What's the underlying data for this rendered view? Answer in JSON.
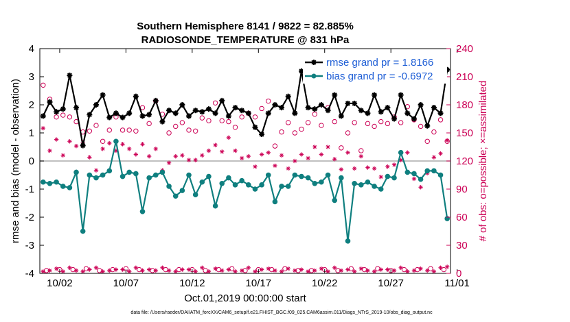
{
  "chart_data": {
    "type": "line",
    "title": "Southern Hemisphere 8141 / 9822 = 82.885%",
    "subtitle": "RADIOSONDE_TEMPERATURE @ 831 hPa",
    "xlabel": "Oct.01,2019 00:00:00 start",
    "ylabel_left": "rmse and bias (model - observation)",
    "ylabel_right": "# of obs: o=possible; ×=assimilated",
    "footer": "data file: /Users/raeder/DAI/ATM_forcXX/CAM6_setup/f.e21.FHIST_BGC.f09_025.CAM6assim.011/Diags_NTrS_2019-10/obs_diag_output.nc",
    "x_range": [
      0.5,
      31.5
    ],
    "ylim_left": [
      -4,
      4
    ],
    "ylim_right": [
      0,
      240
    ],
    "x_ticks": [
      {
        "day": 2,
        "label": "10/02"
      },
      {
        "day": 7,
        "label": "10/07"
      },
      {
        "day": 12,
        "label": "10/12"
      },
      {
        "day": 17,
        "label": "10/17"
      },
      {
        "day": 22,
        "label": "10/22"
      },
      {
        "day": 27,
        "label": "10/27"
      },
      {
        "day": 32,
        "label": "11/01"
      }
    ],
    "y_ticks_left": [
      "-4",
      "-3",
      "-2",
      "-1",
      "0",
      "1",
      "2",
      "3",
      "4"
    ],
    "y_ticks_right": [
      "0",
      "30",
      "60",
      "90",
      "120",
      "150",
      "180",
      "210",
      "240"
    ],
    "legend_position": "top-right",
    "zero_line": true,
    "colors": {
      "rmse": "#000000",
      "bias": "#0f7f7f",
      "counts": "#cc0055",
      "right_axis": "#cc0055",
      "legend_text": "#1f5fd6",
      "zero_line": "#aaaaaa"
    },
    "series": [
      {
        "name": "rmse grand pr = 1.8166",
        "marker": "star",
        "x": [
          0.75,
          1.25,
          1.75,
          2.25,
          2.75,
          3.25,
          3.75,
          4.25,
          4.75,
          5.25,
          5.75,
          6.25,
          6.75,
          7.25,
          7.75,
          8.25,
          8.75,
          9.25,
          9.75,
          10.25,
          10.75,
          11.25,
          11.75,
          12.25,
          12.75,
          13.25,
          13.75,
          14.25,
          14.75,
          15.25,
          15.75,
          16.25,
          16.75,
          17.25,
          17.75,
          18.25,
          18.75,
          19.25,
          19.75,
          20.25,
          20.75,
          21.25,
          21.75,
          22.25,
          22.75,
          23.25,
          23.75,
          24.25,
          24.75,
          25.25,
          25.75,
          26.25,
          26.75,
          27.25,
          27.75,
          28.25,
          28.75,
          29.25,
          29.75,
          30.25,
          30.75,
          31.25
        ],
        "values": [
          1.6,
          2.1,
          1.75,
          1.85,
          3.05,
          1.9,
          0.55,
          1.65,
          2.0,
          2.35,
          1.55,
          1.7,
          1.55,
          1.7,
          2.3,
          1.6,
          1.65,
          2.15,
          1.4,
          1.8,
          1.7,
          2.0,
          1.6,
          1.8,
          1.75,
          1.85,
          1.7,
          2.15,
          1.6,
          1.9,
          1.8,
          1.7,
          1.2,
          0.95,
          1.7,
          2.0,
          1.9,
          2.3,
          1.7,
          3.2,
          1.9,
          1.85,
          2.0,
          1.8,
          2.35,
          1.6,
          2.05,
          2.05,
          1.8,
          1.7,
          2.35,
          1.75,
          1.9,
          1.5,
          2.35,
          1.7,
          1.5,
          2.0,
          1.25,
          1.9,
          1.7,
          3.25
        ]
      },
      {
        "name": "bias grand pr = -0.6972",
        "marker": "circle",
        "x": [
          0.75,
          1.25,
          1.75,
          2.25,
          2.75,
          3.25,
          3.75,
          4.25,
          4.75,
          5.25,
          5.75,
          6.25,
          6.75,
          7.25,
          7.75,
          8.25,
          8.75,
          9.25,
          9.75,
          10.25,
          10.75,
          11.25,
          11.75,
          12.25,
          12.75,
          13.25,
          13.75,
          14.25,
          14.75,
          15.25,
          15.75,
          16.25,
          16.75,
          17.25,
          17.75,
          18.25,
          18.75,
          19.25,
          19.75,
          20.25,
          20.75,
          21.25,
          21.75,
          22.25,
          22.75,
          23.25,
          23.75,
          24.25,
          24.75,
          25.25,
          25.75,
          26.25,
          26.75,
          27.25,
          27.75,
          28.25,
          28.75,
          29.25,
          29.75,
          30.25,
          30.75,
          31.25
        ],
        "values": [
          -0.75,
          -0.8,
          -0.75,
          -0.9,
          -0.95,
          -0.4,
          -2.5,
          -0.5,
          -0.6,
          -0.5,
          -0.35,
          0.7,
          -0.55,
          -0.4,
          -0.45,
          -1.8,
          -0.6,
          -0.5,
          -0.4,
          -0.9,
          -1.25,
          -1.05,
          -0.5,
          -1.2,
          -0.75,
          -0.55,
          -1.6,
          -0.8,
          -0.6,
          -0.85,
          -0.7,
          -0.85,
          -1.0,
          -0.85,
          -0.5,
          -1.45,
          -0.9,
          -0.9,
          -0.5,
          -0.55,
          -0.6,
          -0.8,
          -0.75,
          -0.5,
          -1.4,
          -0.6,
          -2.85,
          -0.8,
          -0.85,
          -0.75,
          -0.9,
          -1.0,
          -0.55,
          -0.6,
          0.3,
          -0.4,
          -0.45,
          -0.65,
          -0.35,
          -0.35,
          -0.5,
          -2.05
        ]
      }
    ],
    "count_series": [
      {
        "name": "possible",
        "marker": "open-circle",
        "x": [
          0.75,
          1.25,
          1.75,
          2.25,
          2.75,
          3.25,
          3.75,
          4.25,
          4.75,
          5.25,
          5.75,
          6.25,
          6.75,
          7.25,
          7.75,
          8.25,
          8.75,
          9.25,
          9.75,
          10.25,
          10.75,
          11.25,
          11.75,
          12.25,
          12.75,
          13.25,
          13.75,
          14.25,
          14.75,
          15.25,
          15.75,
          16.25,
          16.75,
          17.25,
          17.75,
          18.25,
          18.75,
          19.25,
          19.75,
          20.25,
          20.75,
          21.25,
          21.75,
          22.25,
          22.75,
          23.25,
          23.75,
          24.25,
          24.75,
          25.25,
          25.75,
          26.25,
          26.75,
          27.25,
          27.75,
          28.25,
          28.75,
          29.25,
          29.75,
          30.25,
          30.75,
          31.25
        ],
        "values": [
          201,
          186,
          167,
          169,
          167,
          162,
          151,
          152,
          158,
          141,
          153,
          167,
          153,
          153,
          152,
          177,
          160,
          184,
          170,
          150,
          157,
          161,
          153,
          152,
          166,
          163,
          182,
          163,
          162,
          156,
          167,
          171,
          167,
          176,
          184,
          136,
          151,
          161,
          150,
          154,
          161,
          170,
          158,
          177,
          162,
          134,
          150,
          161,
          131,
          160,
          157,
          162,
          160,
          167,
          161,
          178,
          164,
          157,
          141,
          151,
          164,
          141
        ]
      },
      {
        "name": "assimilated",
        "marker": "star",
        "x": [
          0.75,
          1.25,
          1.75,
          2.25,
          2.75,
          3.25,
          3.75,
          4.25,
          4.75,
          5.25,
          5.75,
          6.25,
          6.75,
          7.25,
          7.75,
          8.25,
          8.75,
          9.25,
          9.75,
          10.25,
          10.75,
          11.25,
          11.75,
          12.25,
          12.75,
          13.25,
          13.75,
          14.25,
          14.75,
          15.25,
          15.75,
          16.25,
          16.75,
          17.25,
          17.75,
          18.25,
          18.75,
          19.25,
          19.75,
          20.25,
          20.75,
          21.25,
          21.75,
          22.25,
          22.75,
          23.25,
          23.75,
          24.25,
          24.75,
          25.25,
          25.75,
          26.25,
          26.75,
          27.25,
          27.75,
          28.25,
          28.75,
          29.25,
          29.75,
          30.25,
          30.75,
          31.25
        ],
        "values": [
          155,
          131,
          143,
          126,
          141,
          136,
          140,
          124,
          110,
          133,
          139,
          131,
          138,
          133,
          127,
          138,
          125,
          133,
          110,
          118,
          125,
          126,
          121,
          121,
          126,
          131,
          137,
          130,
          145,
          131,
          123,
          125,
          114,
          127,
          129,
          115,
          126,
          112,
          120,
          127,
          123,
          135,
          127,
          135,
          122,
          111,
          129,
          112,
          125,
          113,
          112,
          103,
          114,
          116,
          121,
          129,
          101,
          92,
          107,
          124,
          128,
          142
        ]
      },
      {
        "name": "possible-bottom",
        "marker": "open-circle",
        "x": [
          1,
          2,
          3,
          4,
          5,
          6,
          7,
          8,
          9,
          10,
          11,
          12,
          13,
          14,
          15,
          16,
          17,
          18,
          19,
          20,
          21,
          22,
          23,
          24,
          25,
          26,
          27,
          28,
          29,
          30,
          31
        ],
        "values": [
          3,
          4,
          4,
          5,
          3,
          4,
          5,
          4,
          3,
          4,
          4,
          4,
          3,
          4,
          5,
          3,
          4,
          4,
          5,
          3,
          3,
          4,
          3,
          5,
          4,
          5,
          3,
          4,
          4,
          5,
          4
        ]
      },
      {
        "name": "assimilated-bottom",
        "marker": "star",
        "x": [
          0.75,
          1.25,
          1.75,
          2.25,
          2.75,
          3.25,
          3.75,
          4.25,
          4.75,
          5.25,
          5.75,
          6.25,
          6.75,
          7.25,
          7.75,
          8.25,
          8.75,
          9.25,
          9.75,
          10.25,
          10.75,
          11.25,
          11.75,
          12.25,
          12.75,
          13.25,
          13.75,
          14.25,
          14.75,
          15.25,
          15.75,
          16.25,
          16.75,
          17.25,
          17.75,
          18.25,
          18.75,
          19.25,
          19.75,
          20.25,
          20.75,
          21.25,
          21.75,
          22.25,
          22.75,
          23.25,
          23.75,
          24.25,
          24.75,
          25.25,
          25.75,
          26.25,
          26.75,
          27.25,
          27.75,
          28.25,
          28.75,
          29.25,
          29.75,
          30.25,
          30.75,
          31.25
        ],
        "values": [
          2,
          3,
          5,
          2,
          6,
          3,
          2,
          4,
          6,
          2,
          3,
          4,
          4,
          2,
          6,
          3,
          4,
          3,
          6,
          3,
          2,
          4,
          4,
          2,
          6,
          2,
          5,
          3,
          4,
          2,
          3,
          6,
          2,
          4,
          5,
          3,
          2,
          5,
          3,
          4,
          2,
          3,
          5,
          2,
          6,
          3,
          4,
          2,
          5,
          3,
          2,
          4,
          4,
          3,
          6,
          2,
          3,
          5,
          3,
          2,
          6,
          7
        ]
      }
    ]
  }
}
